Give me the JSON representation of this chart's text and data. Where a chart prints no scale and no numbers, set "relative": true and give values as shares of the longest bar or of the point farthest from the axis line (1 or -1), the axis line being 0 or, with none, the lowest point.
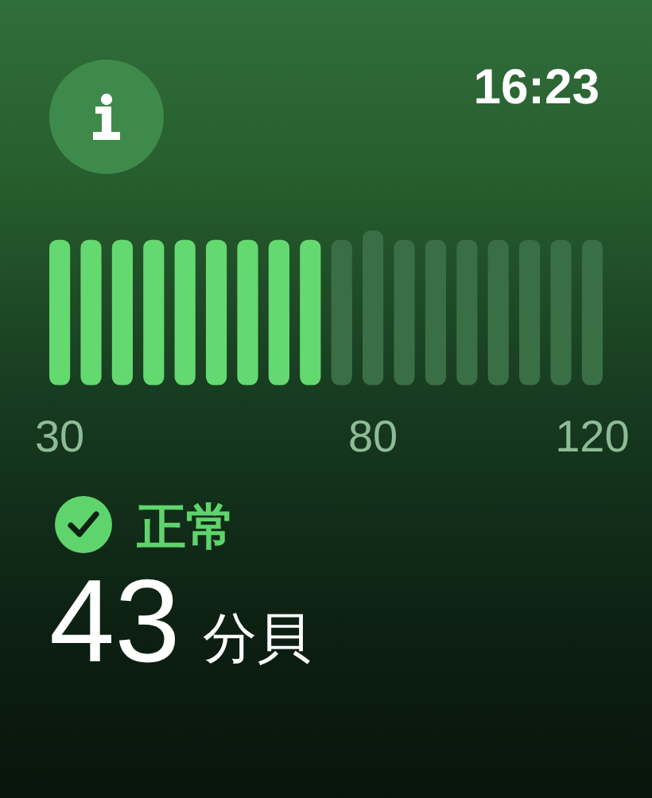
{
  "chart_data": {
    "type": "bar",
    "relative": true,
    "categories": [
      "30",
      null,
      null,
      null,
      null,
      null,
      null,
      null,
      null,
      null,
      "80",
      null,
      null,
      null,
      null,
      null,
      null,
      "120"
    ],
    "values": [
      0.94,
      0.94,
      0.94,
      0.94,
      0.94,
      0.94,
      0.94,
      0.94,
      0.94,
      0.94,
      1,
      0.94,
      0.94,
      0.94,
      0.94,
      0.94,
      0.94,
      0.94
    ],
    "colors": [
      "#64d970",
      "#64d970",
      "#64d970",
      "#64d970",
      "#64d970",
      "#64d970",
      "#64d970",
      "#64d970",
      "#64d970",
      "#3a6f46",
      "#3a6f46",
      "#3a6f46",
      "#3a6f46",
      "#3a6f46",
      "#3a6f46",
      "#3a6f46",
      "#3a6f46",
      "#3a6f46"
    ],
    "annotations": [
      "16:23",
      "正常",
      "43",
      "分貝"
    ]
  }
}
